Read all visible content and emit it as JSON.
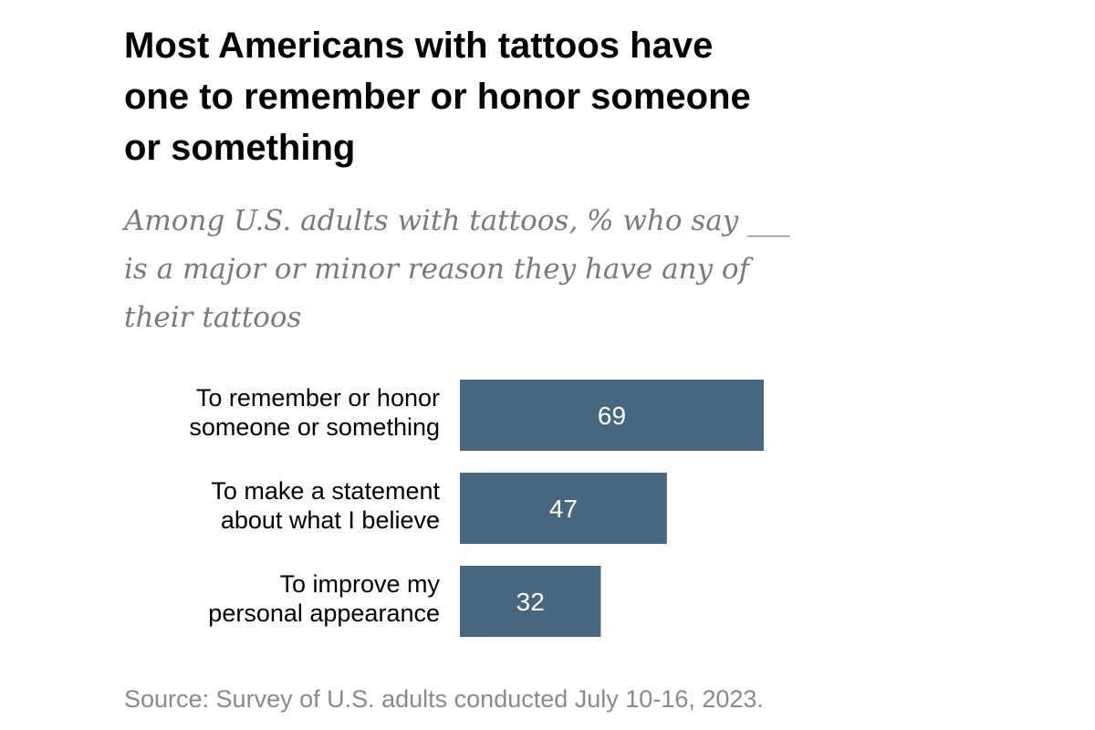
{
  "title": "Most Americans with tattoos have\none to remember or honor someone\nor something",
  "subtitle": "Among U.S. adults with tattoos, % who say ___\nis a major or minor reason they have any of\ntheir tattoos",
  "source": "Source: Survey of U.S. adults conducted July 10-16, 2023.",
  "chart_data": {
    "type": "bar",
    "orientation": "horizontal",
    "categories": [
      [
        "To remember or honor",
        "someone or something"
      ],
      [
        "To make a statement",
        "about what I believe"
      ],
      [
        "To improve my",
        "personal appearance"
      ]
    ],
    "values": [
      69,
      47,
      32
    ],
    "data_labels": [
      "69",
      "47",
      "32"
    ],
    "bar_color": "#476781",
    "xlim": [
      0,
      100
    ],
    "grid": false,
    "legend": "none"
  }
}
